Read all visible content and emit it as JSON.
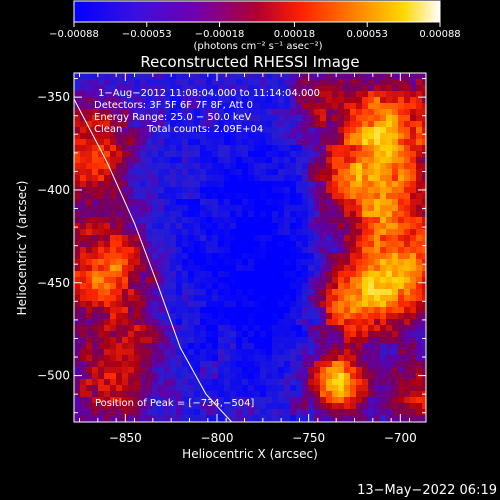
{
  "chart_data": {
    "type": "heatmap",
    "title": "Reconstructed RHESSI Image",
    "xlabel": "Heliocentric X (arcsec)",
    "ylabel": "Heliocentric Y (arcsec)",
    "xlim": [
      -878,
      -686
    ],
    "ylim": [
      -525,
      -337
    ],
    "x_ticks": [
      -850,
      -800,
      -750,
      -700
    ],
    "x_tick_labels": [
      "−850",
      "−800",
      "−750",
      "−700"
    ],
    "y_ticks": [
      -350,
      -400,
      -450,
      -500
    ],
    "y_tick_labels": [
      "−350",
      "−400",
      "−450",
      "−500"
    ],
    "colorbar": {
      "range": [
        -0.00088,
        0.00088
      ],
      "ticks": [
        -0.00088,
        -0.00053,
        -0.00018,
        0.00018,
        0.00053,
        0.00088
      ],
      "tick_labels": [
        "−0.00088",
        "−0.00053",
        "−0.00018",
        "0.00018",
        "0.00053",
        "0.00088"
      ],
      "unit_label": "(photons cm⁻² s⁻¹ asec⁻²)",
      "colors": [
        "#0000ff",
        "#6a00c8",
        "#c80032",
        "#ff2800",
        "#ff8c00",
        "#ffd700",
        "#ffffff"
      ]
    },
    "annotations": {
      "time_range": "1−Aug−2012 11:08:04.000 to 11:14:04.000",
      "detectors": "Detectors: 3F 5F 6F 7F 8F, Att 0",
      "energy_range": "Energy Range: 25.0 − 50.0 keV",
      "algorithm": "Clean",
      "total_counts": "Total counts: 2.09E+04",
      "peak_position": "Position of Peak = [−734,−504]"
    },
    "peak": {
      "x": -734,
      "y": -504
    },
    "limb_curve": [
      [
        -878,
        -351
      ],
      [
        -860,
        -385
      ],
      [
        -845,
        -418
      ],
      [
        -832,
        -452
      ],
      [
        -820,
        -485
      ],
      [
        -806,
        -510
      ],
      [
        -792,
        -525
      ]
    ],
    "grid": false
  },
  "footer": {
    "timestamp": "13−May−2022 06:19"
  }
}
